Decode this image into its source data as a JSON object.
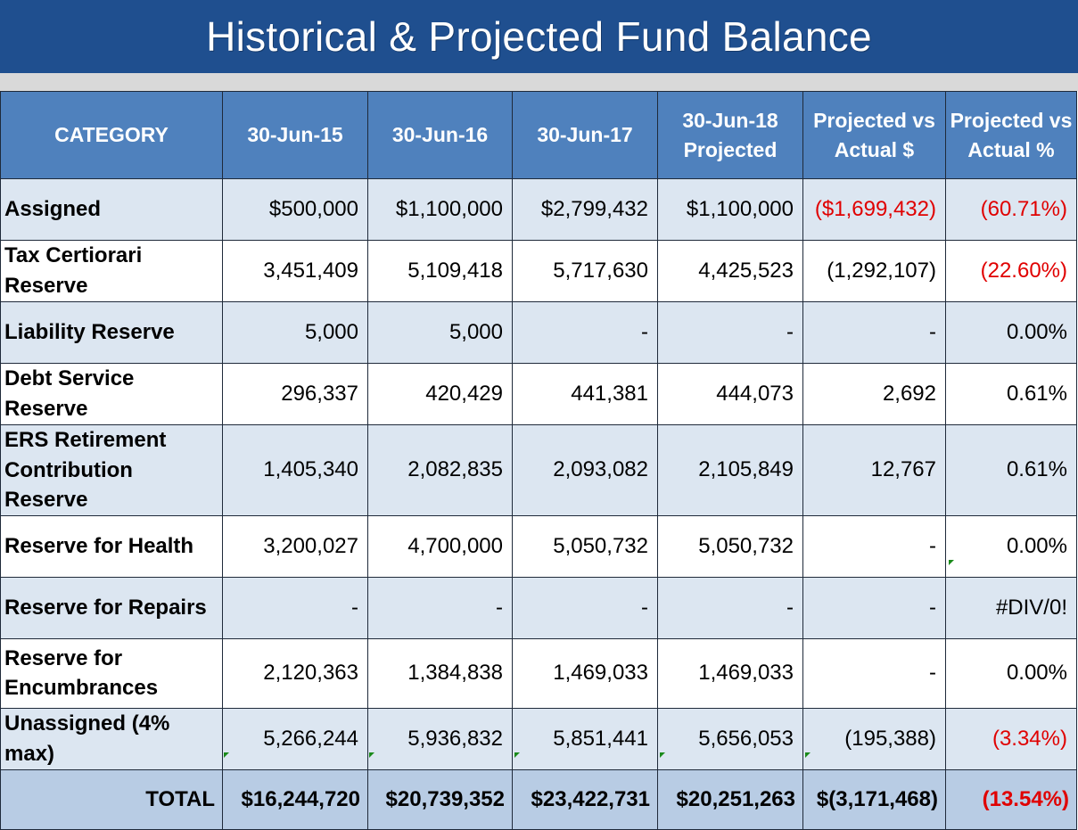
{
  "title": "Historical & Projected Fund Balance",
  "headers": {
    "category": "CATEGORY",
    "c1": "30-Jun-15",
    "c2": "30-Jun-16",
    "c3": "30-Jun-17",
    "c4_line1": "30-Jun-18",
    "c4_line2": "Projected",
    "c5_line1": "Projected vs",
    "c5_line2": "Actual $",
    "c6_line1": "Projected vs",
    "c6_line2": "Actual %"
  },
  "rows": [
    {
      "category": "Assigned",
      "v1": "$500,000",
      "v2": "$1,100,000",
      "v3": "$2,799,432",
      "v4": "$1,100,000",
      "v5": "($1,699,432)",
      "v6": "(60.71%)"
    },
    {
      "category": "Tax Certiorari Reserve",
      "v1": "3,451,409",
      "v2": "5,109,418",
      "v3": "5,717,630",
      "v4": "4,425,523",
      "v5": "(1,292,107)",
      "v6": "(22.60%)"
    },
    {
      "category": "Liability Reserve",
      "v1": "5,000",
      "v2": "5,000",
      "v3": "-",
      "v4": "-",
      "v5": "-",
      "v6": "0.00%"
    },
    {
      "category": "Debt Service Reserve",
      "v1": "296,337",
      "v2": "420,429",
      "v3": "441,381",
      "v4": "444,073",
      "v5": "2,692",
      "v6": "0.61%"
    },
    {
      "category": "ERS Retirement Contribution Reserve",
      "v1": "1,405,340",
      "v2": "2,082,835",
      "v3": "2,093,082",
      "v4": "2,105,849",
      "v5": "12,767",
      "v6": "0.61%"
    },
    {
      "category": "Reserve for Health",
      "v1": "3,200,027",
      "v2": "4,700,000",
      "v3": "5,050,732",
      "v4": "5,050,732",
      "v5": "-",
      "v6": "0.00%"
    },
    {
      "category": "Reserve for Repairs",
      "v1": "-",
      "v2": "-",
      "v3": "-",
      "v4": "-",
      "v5": "-",
      "v6": "#DIV/0!"
    },
    {
      "category": "Reserve for Encumbrances",
      "v1": "2,120,363",
      "v2": "1,384,838",
      "v3": "1,469,033",
      "v4": "1,469,033",
      "v5": "-",
      "v6": "0.00%"
    },
    {
      "category": "Unassigned (4% max)",
      "v1": "5,266,244",
      "v2": "5,936,832",
      "v3": "5,851,441",
      "v4": "5,656,053",
      "v5": "(195,388)",
      "v6": "(3.34%)"
    }
  ],
  "total": {
    "label": "TOTAL",
    "v1": "$16,244,720",
    "v2": "$20,739,352",
    "v3": "$23,422,731",
    "v4": "$20,251,263",
    "v5": "$(3,171,468)",
    "v6": "(13.54%)"
  },
  "colors": {
    "banner": "#1f4f8f",
    "header": "#4f81bd",
    "row_light": "#dce6f1",
    "total_row": "#b8cce4",
    "negative": "#e00000"
  }
}
